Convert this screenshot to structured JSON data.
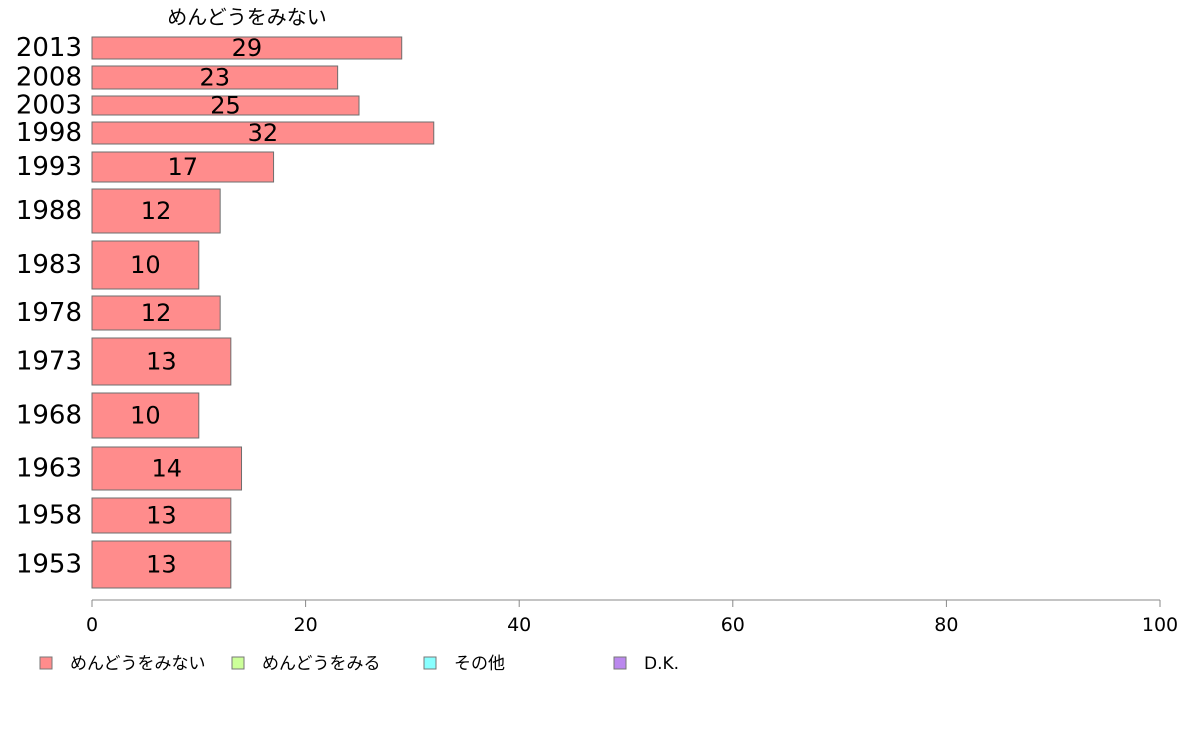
{
  "chart_data": {
    "type": "bar",
    "orientation": "horizontal",
    "title": "めんどうをみない",
    "categories": [
      "2013",
      "2008",
      "2003",
      "1998",
      "1993",
      "1988",
      "1983",
      "1978",
      "1973",
      "1968",
      "1963",
      "1958",
      "1953"
    ],
    "series": [
      {
        "name": "めんどうをみない",
        "values": [
          29,
          23,
          25,
          32,
          17,
          12,
          10,
          12,
          13,
          10,
          14,
          13,
          13
        ],
        "color": "#ff8c8c"
      }
    ],
    "xlim": [
      0,
      100
    ],
    "xticks": [
      0,
      20,
      40,
      60,
      80,
      100
    ],
    "grid": false,
    "legend": {
      "position": "bottom-left",
      "entries": [
        {
          "label": "めんどうをみない",
          "color": "#ff8c8c"
        },
        {
          "label": "めんどうをみる",
          "color": "#ccff99"
        },
        {
          "label": "その他",
          "color": "#88ffff"
        },
        {
          "label": "D.K.",
          "color": "#bb88ee"
        }
      ]
    }
  }
}
